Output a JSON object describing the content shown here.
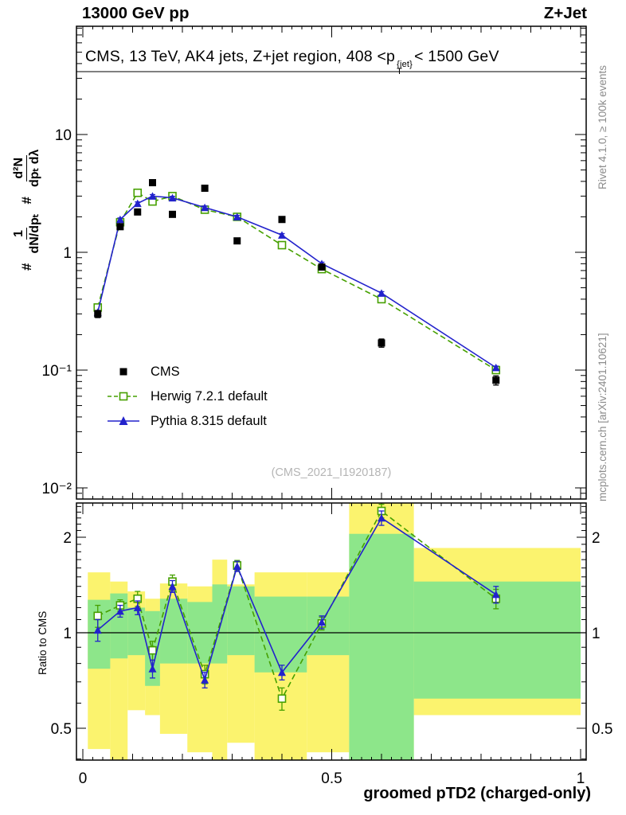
{
  "header": {
    "left": "13000 GeV pp",
    "right": "Z+Jet"
  },
  "main_panel": {
    "title_pre": "CMS, 13 TeV, AK4 jets, Z+jet region, 408 <p",
    "title_sup": "{jet}",
    "title_sub": "T",
    "title_post": "< 1500 GeV",
    "watermark": "(CMS_2021_I1920187)",
    "ylabel": {
      "hash1": "#",
      "num1": "1",
      "den1": "dN/dpₜ",
      "hash2": "#",
      "num2": "d²N",
      "den2": "dpₜ dλ"
    }
  },
  "ratio_panel": {
    "ylabel": "Ratio to CMS"
  },
  "axes": {
    "xlabel": "groomed pTD2 (charged-only)"
  },
  "legend": [
    {
      "label": "CMS"
    },
    {
      "label": "Herwig 7.2.1 default"
    },
    {
      "label": "Pythia 8.315 default"
    }
  ],
  "sidebar_right": {
    "top": "Rivet 4.1.0, ≥ 100k events",
    "bottom": "mcplots.cern.ch [arXiv:2401.10621]"
  },
  "colors": {
    "cms": "#000000",
    "herwig": "#46a000",
    "pythia": "#2222cc",
    "band_yellow": "#fbf36e",
    "band_green": "#8de68a"
  },
  "chart_data": {
    "type": "line",
    "title": "CMS, 13 TeV, AK4 jets, Z+jet region, 408 <pT{jet}< 1500 GeV",
    "xlabel": "groomed pTD2 (charged-only)",
    "ylabel": "# 1/(dN/dpT) d²N/(dpT dλ)",
    "ratio_ylabel": "Ratio to CMS",
    "xlim": [
      0,
      1
    ],
    "ylog": true,
    "ylim": [
      0.008,
      85
    ],
    "ratio_ylog": true,
    "ratio_ylim": [
      0.4,
      2.56
    ],
    "grid": false,
    "legend_position": "middle-left",
    "x": [
      0.03,
      0.075,
      0.11,
      0.14,
      0.18,
      0.245,
      0.31,
      0.4,
      0.48,
      0.6,
      0.83
    ],
    "series": [
      {
        "name": "Herwig 7.2.1 default",
        "color": "#46a000",
        "marker": "open-square",
        "line": true,
        "dash": "7 4",
        "values": [
          0.34,
          1.8,
          3.2,
          2.7,
          3.0,
          2.3,
          2.0,
          1.15,
          0.72,
          0.4,
          0.1
        ],
        "yerr_rel_const": 0.03
      },
      {
        "name": "Pythia 8.315 default",
        "color": "#2222cc",
        "marker": "triangle",
        "line": true,
        "values": [
          0.31,
          1.9,
          2.6,
          3.0,
          2.9,
          2.4,
          2.0,
          1.4,
          0.8,
          0.45,
          0.105
        ],
        "yerr_rel_const": 0.03
      },
      {
        "name": "CMS",
        "color": "#000000",
        "marker": "square",
        "line": false,
        "values": [
          0.3,
          1.65,
          2.2,
          3.9,
          2.1,
          3.5,
          1.25,
          1.9,
          0.75,
          0.17,
          0.082
        ],
        "yerr_rel": [
          0.07,
          0.04,
          0.04,
          0.04,
          0.04,
          0.04,
          0.05,
          0.04,
          0.05,
          0.08,
          0.09
        ]
      }
    ],
    "yticks": [
      {
        "v": 10,
        "label": "10"
      },
      {
        "v": 1,
        "label": "1"
      },
      {
        "v": 0.1,
        "label": "10⁻¹"
      },
      {
        "v": 0.01,
        "label": "10⁻²"
      }
    ],
    "xticks": [
      {
        "v": 0,
        "label": "0"
      },
      {
        "v": 0.5,
        "label": "0.5"
      },
      {
        "v": 1,
        "label": "1"
      }
    ],
    "ratio_yticks": [
      {
        "v": 2,
        "label": "2"
      },
      {
        "v": 1,
        "label": "1"
      },
      {
        "v": 0.5,
        "label": "0.5"
      }
    ],
    "ratio": {
      "baseline": 1,
      "series": [
        {
          "name": "Herwig 7.2.1 default",
          "color": "#46a000",
          "marker": "open-square",
          "dash": "7 4",
          "values": [
            1.13,
            1.22,
            1.28,
            0.88,
            1.45,
            0.74,
            1.63,
            0.62,
            1.07,
            2.42,
            1.28
          ],
          "yerr": [
            0.09,
            0.05,
            0.07,
            0.06,
            0.07,
            0.05,
            0.06,
            0.05,
            0.05,
            0.12,
            0.09
          ]
        },
        {
          "name": "Pythia 8.315 default",
          "color": "#2222cc",
          "marker": "triangle",
          "values": [
            1.02,
            1.17,
            1.2,
            0.77,
            1.4,
            0.71,
            1.62,
            0.75,
            1.08,
            2.3,
            1.32
          ],
          "yerr": [
            0.08,
            0.05,
            0.06,
            0.05,
            0.06,
            0.04,
            0.06,
            0.04,
            0.05,
            0.12,
            0.08
          ]
        }
      ],
      "bands": {
        "edges": [
          0.01,
          0.055,
          0.09,
          0.125,
          0.155,
          0.21,
          0.26,
          0.29,
          0.345,
          0.45,
          0.535,
          0.665,
          1.0
        ],
        "yellow": [
          [
            0.43,
            1.55
          ],
          [
            0.38,
            1.45
          ],
          [
            0.57,
            1.35
          ],
          [
            0.55,
            1.28
          ],
          [
            0.48,
            1.43
          ],
          [
            0.42,
            1.4
          ],
          [
            0.3,
            1.7
          ],
          [
            0.45,
            1.42
          ],
          [
            0.35,
            1.55
          ],
          [
            0.42,
            1.55
          ],
          [
            0.28,
            2.56
          ],
          [
            0.55,
            1.85
          ]
        ],
        "green": [
          [
            0.77,
            1.27
          ],
          [
            0.83,
            1.33
          ],
          [
            0.85,
            1.2
          ],
          [
            0.68,
            1.17
          ],
          [
            0.8,
            1.28
          ],
          [
            0.8,
            1.25
          ],
          [
            0.8,
            1.42
          ],
          [
            0.85,
            1.4
          ],
          [
            0.75,
            1.3
          ],
          [
            0.85,
            1.3
          ],
          [
            0.38,
            2.05
          ],
          [
            0.62,
            1.45
          ]
        ]
      }
    }
  }
}
